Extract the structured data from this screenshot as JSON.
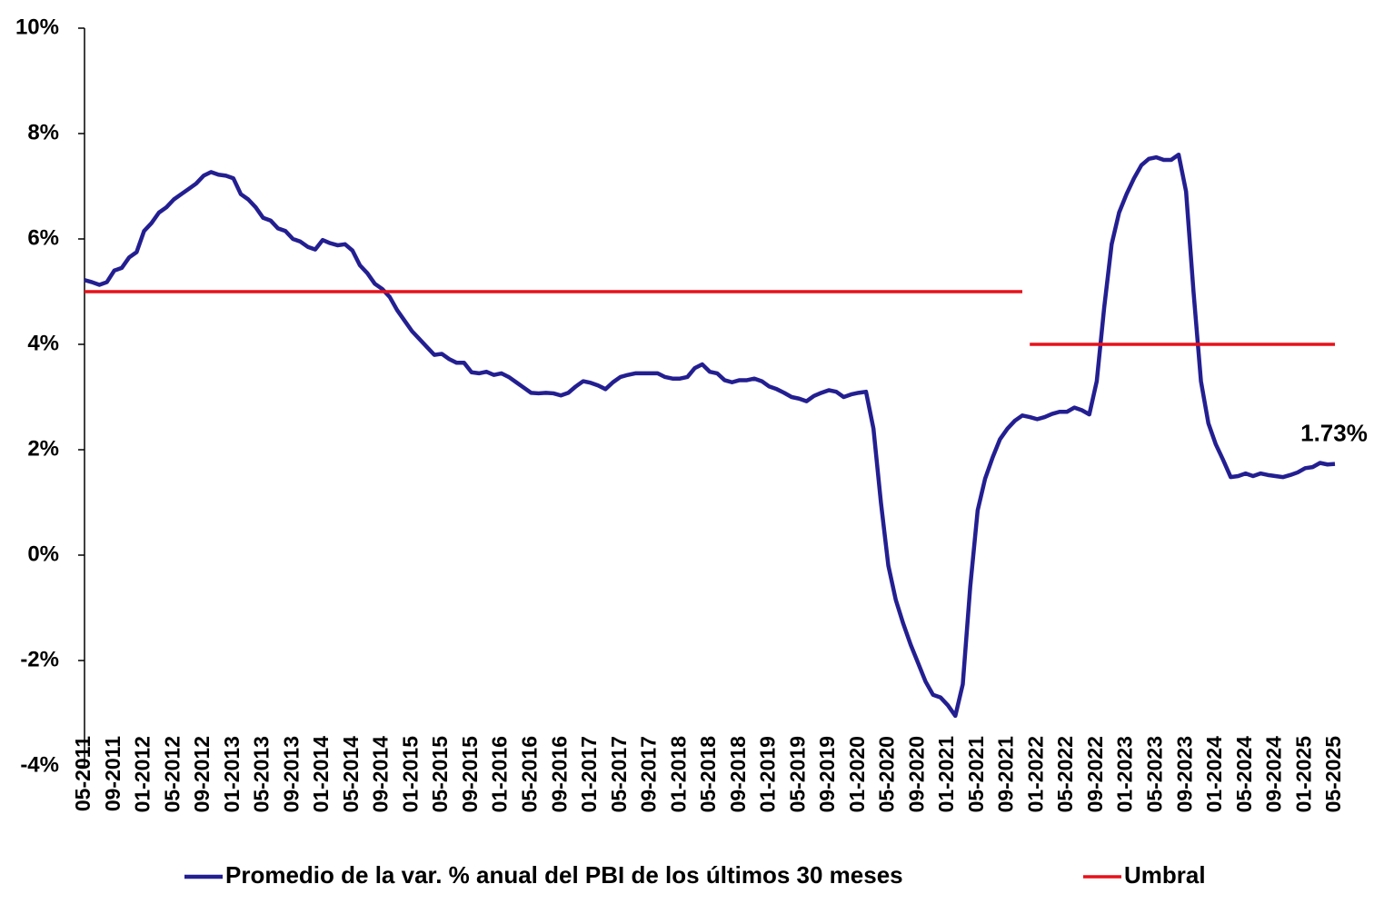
{
  "chart_data": {
    "type": "line",
    "categories": [
      "05-2011",
      null,
      null,
      null,
      "09-2011",
      null,
      null,
      null,
      "01-2012",
      null,
      null,
      null,
      "05-2012",
      null,
      null,
      null,
      "09-2012",
      null,
      null,
      null,
      "01-2013",
      null,
      null,
      null,
      "05-2013",
      null,
      null,
      null,
      "09-2013",
      null,
      null,
      null,
      "01-2014",
      null,
      null,
      null,
      "05-2014",
      null,
      null,
      null,
      "09-2014",
      null,
      null,
      null,
      "01-2015",
      null,
      null,
      null,
      "05-2015",
      null,
      null,
      null,
      "09-2015",
      null,
      null,
      null,
      "01-2016",
      null,
      null,
      null,
      "05-2016",
      null,
      null,
      null,
      "09-2016",
      null,
      null,
      null,
      "01-2017",
      null,
      null,
      null,
      "05-2017",
      null,
      null,
      null,
      "09-2017",
      null,
      null,
      null,
      "01-2018",
      null,
      null,
      null,
      "05-2018",
      null,
      null,
      null,
      "09-2018",
      null,
      null,
      null,
      "01-2019",
      null,
      null,
      null,
      "05-2019",
      null,
      null,
      null,
      "09-2019",
      null,
      null,
      null,
      "01-2020",
      null,
      null,
      null,
      "05-2020",
      null,
      null,
      null,
      "09-2020",
      null,
      null,
      null,
      "01-2021",
      null,
      null,
      null,
      "05-2021",
      null,
      null,
      null,
      "09-2021",
      null,
      null,
      null,
      "01-2022",
      null,
      null,
      null,
      "05-2022",
      null,
      null,
      null,
      "09-2022",
      null,
      null,
      null,
      "01-2023",
      null,
      null,
      null,
      "05-2023",
      null,
      null,
      null,
      "09-2023",
      null,
      null,
      null,
      "01-2024",
      null,
      null,
      null,
      "05-2024",
      null,
      null,
      null,
      "09-2024",
      null,
      null,
      null,
      "01-2025",
      null,
      null,
      null,
      "05-2025"
    ],
    "series": [
      {
        "name": "Promedio de la var. % anual del PBI de los últimos 30 meses",
        "color": "#231f91",
        "values": [
          5.22,
          5.18,
          5.13,
          5.18,
          5.4,
          5.45,
          5.65,
          5.75,
          6.15,
          6.3,
          6.5,
          6.6,
          6.75,
          6.85,
          6.95,
          7.05,
          7.2,
          7.27,
          7.22,
          7.2,
          7.15,
          6.85,
          6.75,
          6.6,
          6.4,
          6.35,
          6.2,
          6.15,
          6.0,
          5.95,
          5.85,
          5.8,
          5.98,
          5.92,
          5.88,
          5.9,
          5.78,
          5.5,
          5.35,
          5.15,
          5.05,
          4.9,
          4.65,
          4.45,
          4.25,
          4.1,
          3.95,
          3.8,
          3.82,
          3.72,
          3.65,
          3.65,
          3.47,
          3.45,
          3.48,
          3.42,
          3.45,
          3.38,
          3.28,
          3.18,
          3.08,
          3.07,
          3.08,
          3.07,
          3.03,
          3.08,
          3.2,
          3.3,
          3.27,
          3.22,
          3.15,
          3.28,
          3.38,
          3.42,
          3.45,
          3.45,
          3.45,
          3.45,
          3.38,
          3.35,
          3.35,
          3.38,
          3.55,
          3.62,
          3.48,
          3.45,
          3.32,
          3.28,
          3.32,
          3.32,
          3.35,
          3.3,
          3.2,
          3.15,
          3.08,
          3.0,
          2.97,
          2.92,
          3.02,
          3.08,
          3.13,
          3.1,
          3.0,
          3.05,
          3.08,
          3.1,
          2.4,
          1.0,
          -0.2,
          -0.85,
          -1.3,
          -1.7,
          -2.05,
          -2.4,
          -2.65,
          -2.7,
          -2.85,
          -3.05,
          -2.45,
          -0.6,
          0.85,
          1.45,
          1.85,
          2.2,
          2.4,
          2.55,
          2.65,
          2.62,
          2.58,
          2.62,
          2.68,
          2.72,
          2.72,
          2.8,
          2.75,
          2.67,
          3.3,
          4.7,
          5.9,
          6.5,
          6.85,
          7.15,
          7.4,
          7.52,
          7.55,
          7.5,
          7.5,
          7.6,
          6.9,
          5.0,
          3.3,
          2.5,
          2.1,
          1.8,
          1.48,
          1.5,
          1.55,
          1.5,
          1.55,
          1.52,
          1.5,
          1.48,
          1.52,
          1.57,
          1.65,
          1.67,
          1.75,
          1.72,
          1.73
        ],
        "value_labels": [
          null,
          null,
          null,
          null,
          null,
          null,
          null,
          null,
          null,
          null,
          null,
          null,
          null,
          null,
          null,
          null,
          null,
          null,
          null,
          null,
          null,
          null,
          null,
          null,
          null,
          null,
          null,
          null,
          null,
          null,
          null,
          null,
          null,
          null,
          null,
          null,
          null,
          null,
          null,
          null,
          null,
          null,
          null,
          null,
          null,
          null,
          null,
          null,
          null,
          null,
          null,
          null,
          null,
          null,
          null,
          null,
          null,
          null,
          null,
          null,
          null,
          null,
          null,
          null,
          null,
          null,
          null,
          null,
          null,
          null,
          null,
          null,
          null,
          null,
          null,
          null,
          null,
          null,
          null,
          null,
          null,
          null,
          null,
          null,
          null,
          null,
          null,
          null,
          null,
          null,
          null,
          null,
          null,
          null,
          null,
          null,
          null,
          null,
          null,
          null,
          null,
          null,
          null,
          null,
          null,
          null,
          null,
          null,
          null,
          null,
          null,
          null,
          null,
          null,
          null,
          null,
          null,
          null,
          null,
          null,
          null,
          null,
          null,
          null,
          null,
          null,
          null,
          null,
          null,
          null,
          null,
          null,
          null,
          null,
          null,
          null,
          null,
          null,
          null,
          null,
          null,
          null,
          null,
          null,
          null,
          null,
          null,
          null,
          null,
          null,
          null,
          null,
          null,
          null,
          null,
          null,
          null,
          null,
          null,
          null,
          null,
          null,
          null,
          null,
          null,
          null,
          null,
          null,
          "1.73%"
        ]
      },
      {
        "name": "Umbral",
        "color": "#e8101a",
        "values": [
          5,
          5,
          5,
          5,
          5,
          5,
          5,
          5,
          5,
          5,
          5,
          5,
          5,
          5,
          5,
          5,
          5,
          5,
          5,
          5,
          5,
          5,
          5,
          5,
          5,
          5,
          5,
          5,
          5,
          5,
          5,
          5,
          5,
          5,
          5,
          5,
          5,
          5,
          5,
          5,
          5,
          5,
          5,
          5,
          5,
          5,
          5,
          5,
          5,
          5,
          5,
          5,
          5,
          5,
          5,
          5,
          5,
          5,
          5,
          5,
          5,
          5,
          5,
          5,
          5,
          5,
          5,
          5,
          5,
          5,
          5,
          5,
          5,
          5,
          5,
          5,
          5,
          5,
          5,
          5,
          5,
          5,
          5,
          5,
          5,
          5,
          5,
          5,
          5,
          5,
          5,
          5,
          5,
          5,
          5,
          5,
          5,
          5,
          5,
          5,
          5,
          5,
          5,
          5,
          5,
          5,
          5,
          5,
          5,
          5,
          5,
          5,
          5,
          5,
          5,
          5,
          5,
          5,
          5,
          5,
          5,
          5,
          5,
          5,
          5,
          5,
          5,
          4,
          4,
          4,
          4,
          4,
          4,
          4,
          4,
          4,
          4,
          4,
          4,
          4,
          4,
          4,
          4,
          4,
          4,
          4,
          4,
          4,
          4,
          4,
          4,
          4,
          4,
          4,
          4,
          4,
          4,
          4,
          4,
          4,
          4,
          4,
          4,
          4,
          4,
          4,
          4,
          4,
          4
        ]
      }
    ],
    "ylim": [
      -4,
      10
    ],
    "yticks": [
      {
        "value": -4,
        "label": "-4%"
      },
      {
        "value": -2,
        "label": "-2%"
      },
      {
        "value": 0,
        "label": "0%"
      },
      {
        "value": 2,
        "label": "2%"
      },
      {
        "value": 4,
        "label": "4%"
      },
      {
        "value": 6,
        "label": "6%"
      },
      {
        "value": 8,
        "label": "8%"
      },
      {
        "value": 10,
        "label": "10%"
      }
    ],
    "grid": false,
    "legend": "bottom"
  }
}
